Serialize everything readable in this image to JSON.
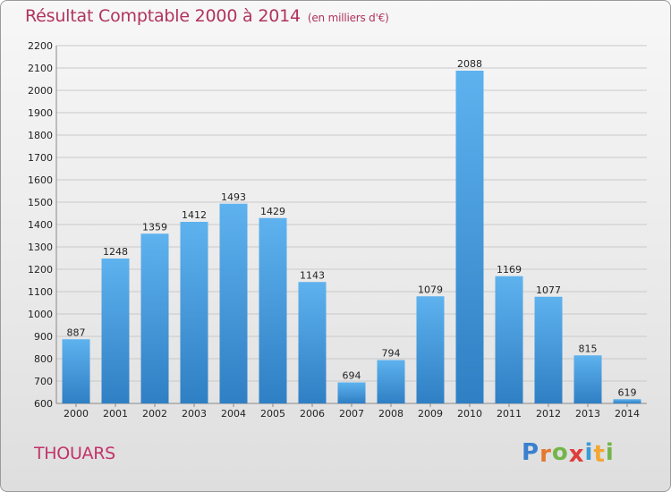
{
  "chart_data": {
    "type": "bar",
    "title": "Résultat Comptable 2000 à 2014",
    "unit": "(en milliers d'€)",
    "categories": [
      "2000",
      "2001",
      "2002",
      "2003",
      "2004",
      "2005",
      "2006",
      "2007",
      "2008",
      "2009",
      "2010",
      "2011",
      "2012",
      "2013",
      "2014"
    ],
    "values": [
      887,
      1248,
      1359,
      1412,
      1493,
      1429,
      1143,
      694,
      794,
      1079,
      2088,
      1169,
      1077,
      815,
      619
    ],
    "ylim": [
      600,
      2200
    ],
    "ytick_step": 100,
    "xlabel": "",
    "ylabel": "",
    "grid": true,
    "bar_color": "#4ea3e2"
  },
  "city": "THOUARS",
  "logo": {
    "letters": [
      "P",
      "r",
      "o",
      "x",
      "i",
      "t",
      "i"
    ],
    "colors": [
      "#3a7fd0",
      "#e6772e",
      "#74b54a",
      "#e03c3c",
      "#3a9ad6",
      "#f2a634",
      "#74b54a"
    ]
  }
}
